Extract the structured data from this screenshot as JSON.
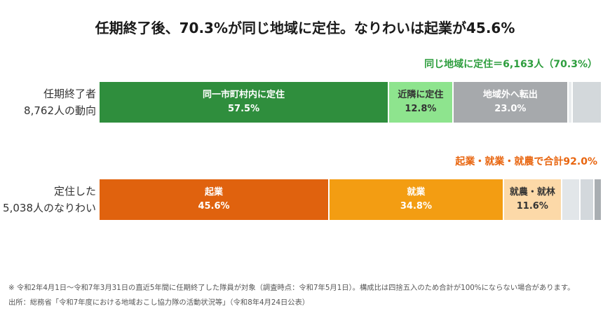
{
  "chart_data": {
    "type": "bar",
    "horizontal": true,
    "stacked": true,
    "grid": false,
    "legend": false,
    "title": "任期終了後、70.3%が同じ地域に定住。なりわいは起業が45.6%",
    "xlim": [
      0,
      100
    ],
    "rows": [
      {
        "label_lines": [
          "任期終了者",
          "8,762人の動向"
        ],
        "annotation": "同じ地域に定住＝6,163人（70.3%）",
        "annotation_color": "#2e9e3e",
        "segments": [
          {
            "name": "同一市町村内に定住",
            "value": 57.5,
            "value_label": "57.5%",
            "color": "#2f8e3d",
            "text_color": "#ffffff"
          },
          {
            "name": "近隣に定住",
            "value": 12.8,
            "value_label": "12.8%",
            "color": "#8ee48e",
            "text_color": "#333333"
          },
          {
            "name": "地域外へ転出",
            "value": 23.0,
            "value_label": "23.0%",
            "color": "#a6a9ac",
            "text_color": "#ffffff"
          },
          {
            "value": 0.8,
            "color": "#e9ecee"
          },
          {
            "value": 5.9,
            "color": "#d3d8db"
          }
        ]
      },
      {
        "label_lines": [
          "定住した",
          "5,038人のなりわい"
        ],
        "annotation": "起業・就業・就農で合計92.0%",
        "annotation_color": "#e8650f",
        "segments": [
          {
            "name": "起業",
            "value": 45.6,
            "value_label": "45.6%",
            "color": "#e0620e",
            "text_color": "#ffffff"
          },
          {
            "name": "就業",
            "value": 34.8,
            "value_label": "34.8%",
            "color": "#f39d12",
            "text_color": "#ffffff"
          },
          {
            "name": "就農・就林",
            "value": 11.6,
            "value_label": "11.6%",
            "color": "#fcd9a8",
            "text_color": "#333333"
          },
          {
            "value": 3.6,
            "color": "#e2e6e9"
          },
          {
            "value": 2.8,
            "color": "#d3d8dc"
          },
          {
            "value": 1.6,
            "color": "#a9aeb2"
          }
        ]
      }
    ]
  },
  "notes": {
    "scope": "※ 令和2年4月1日～令和7年3月31日の直近5年間に任期終了した隊員が対象（調査時点：令和7年5月1日）。構成比は四捨五入のため合計が100%にならない場合があります。",
    "source": "出所：総務省「令和7年度における地域おこし協力隊の活動状況等」（令和8年4月24日公表）"
  }
}
